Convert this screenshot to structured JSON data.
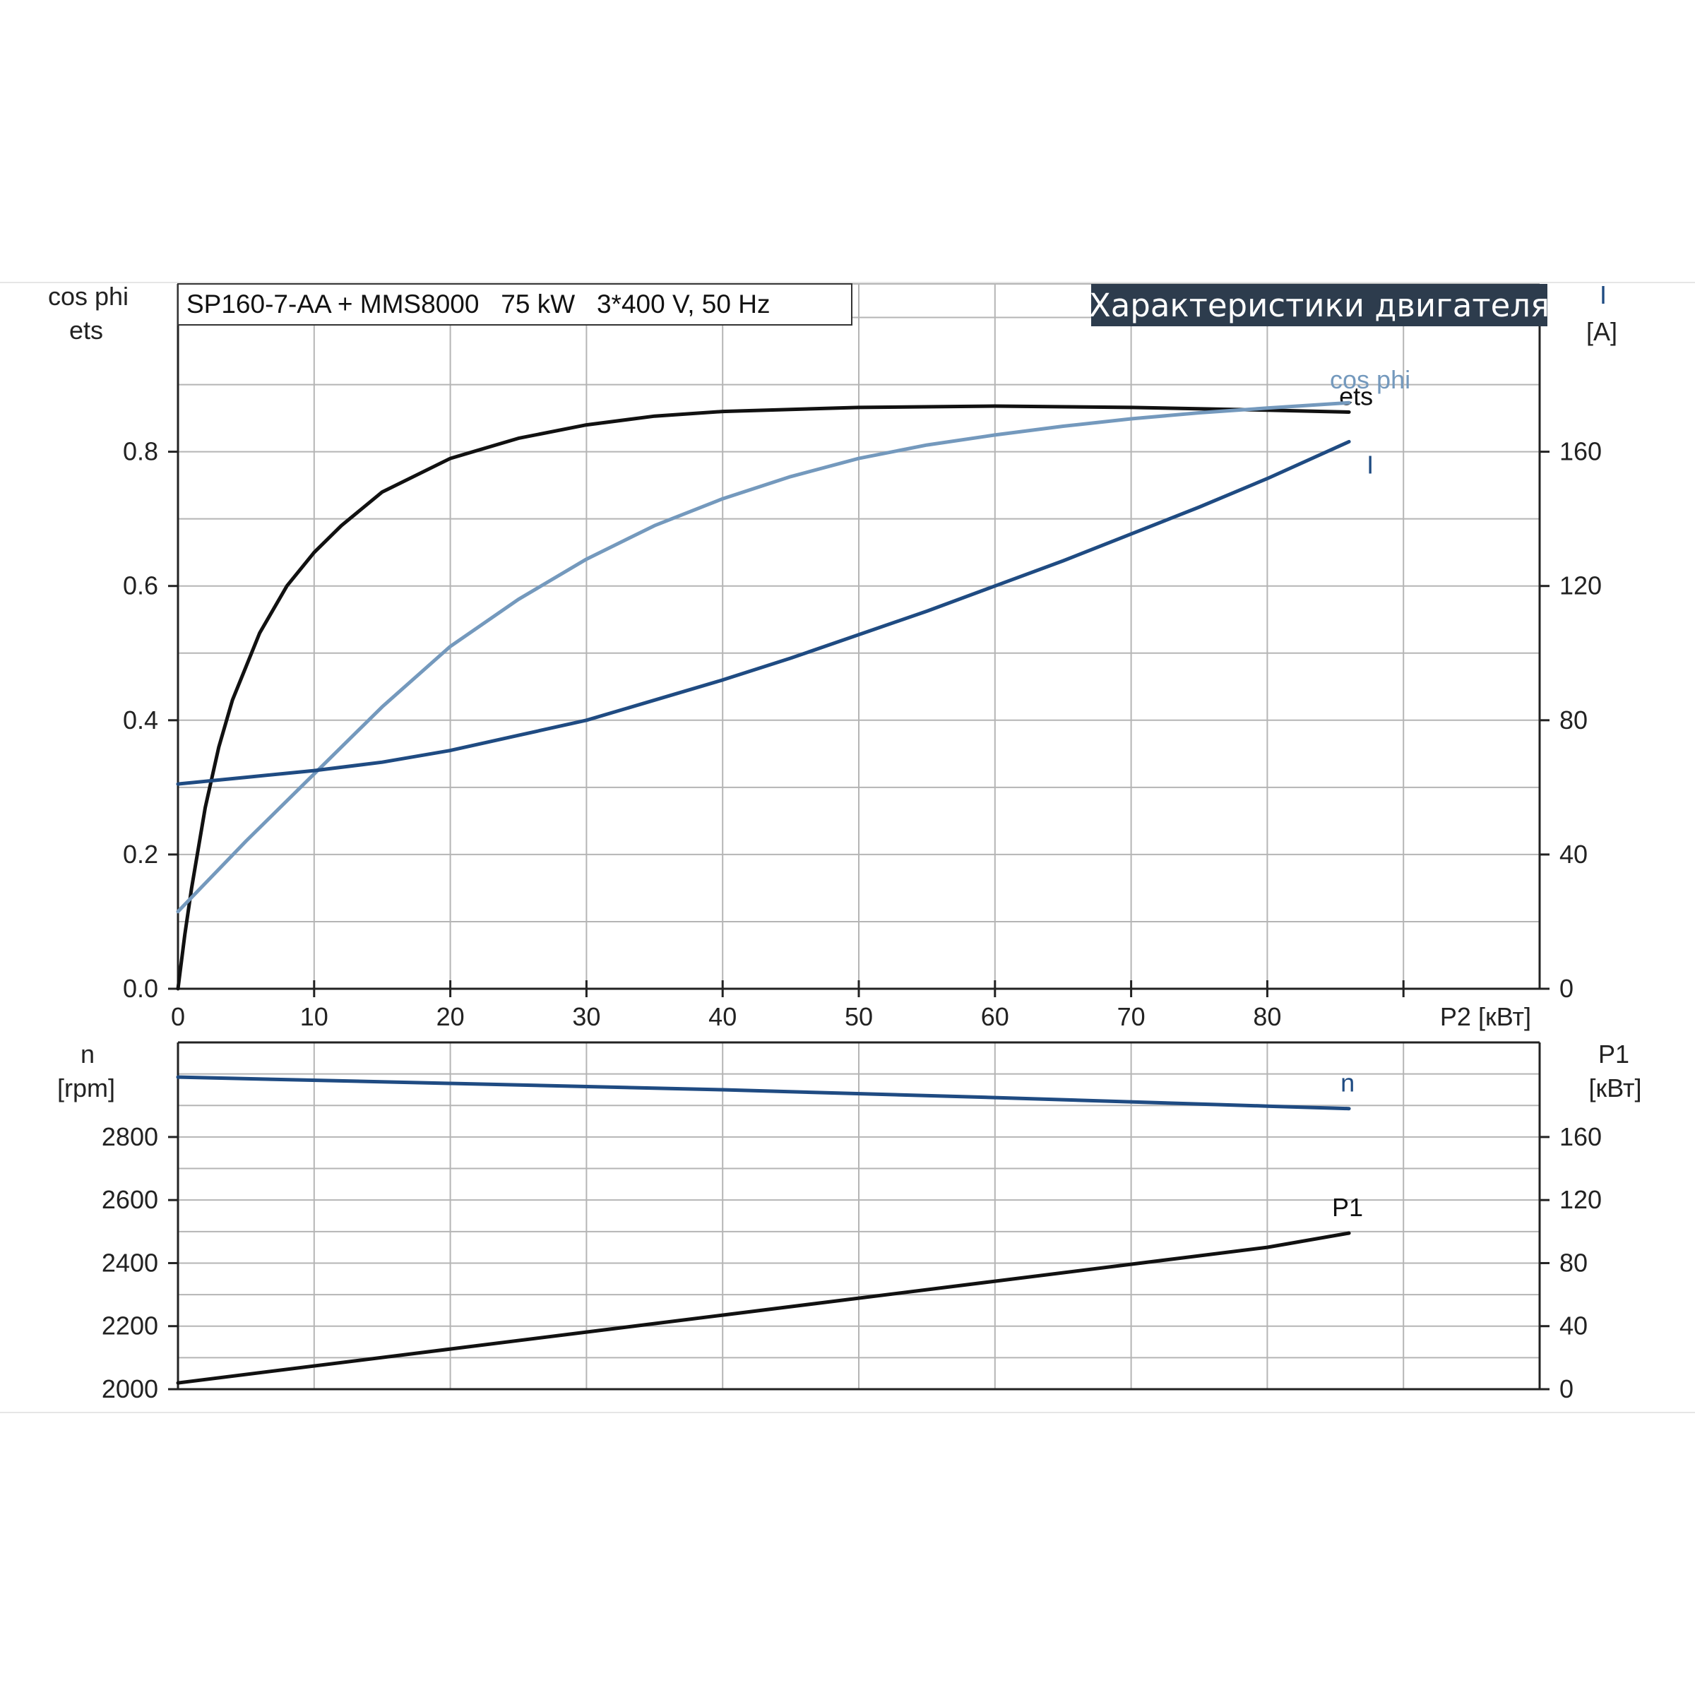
{
  "info_box": "SP160-7-AA + MMS8000   75 kW   3*400 V, 50 Hz",
  "badge": "Характеристики двигателя",
  "colors": {
    "ets": "#111111",
    "cosphi": "#7499bd",
    "I": "#1f4b82",
    "n": "#1f4b82",
    "P1": "#111111",
    "grid": "#b5b5b5",
    "badge_bg": "#2d3c4d"
  },
  "chart_data": [
    {
      "type": "line",
      "name": "upper",
      "xlabel": "P2 [кВт]",
      "xlim": [
        0,
        100
      ],
      "x_ticks": [
        0,
        10,
        20,
        30,
        40,
        50,
        60,
        70,
        80
      ],
      "left_axis": {
        "label_line1": "cos phi",
        "label_line2": "ets",
        "ylim": [
          0,
          1.05
        ],
        "ticks": [
          "0.0",
          "0.2",
          "0.4",
          "0.6",
          "0.8"
        ]
      },
      "right_axis": {
        "label_line1": "I",
        "label_line2": "[A]",
        "ylim": [
          0,
          210
        ],
        "ticks": [
          "0",
          "40",
          "80",
          "120",
          "160"
        ]
      },
      "grid": true,
      "series": [
        {
          "name": "ets",
          "axis": "left",
          "x": [
            0,
            0.5,
            1,
            2,
            3,
            4,
            5,
            6,
            8,
            10,
            12,
            15,
            20,
            25,
            30,
            35,
            40,
            50,
            60,
            70,
            80,
            86
          ],
          "y": [
            0,
            0.08,
            0.15,
            0.27,
            0.36,
            0.43,
            0.48,
            0.53,
            0.6,
            0.65,
            0.69,
            0.74,
            0.79,
            0.82,
            0.84,
            0.853,
            0.86,
            0.866,
            0.868,
            0.866,
            0.862,
            0.859
          ]
        },
        {
          "name": "cos phi",
          "axis": "left",
          "x": [
            0,
            5,
            10,
            15,
            20,
            25,
            30,
            35,
            40,
            45,
            50,
            55,
            60,
            65,
            70,
            75,
            80,
            86
          ],
          "y": [
            0.115,
            0.22,
            0.32,
            0.42,
            0.51,
            0.58,
            0.64,
            0.69,
            0.73,
            0.763,
            0.79,
            0.81,
            0.825,
            0.838,
            0.849,
            0.858,
            0.865,
            0.873
          ]
        },
        {
          "name": "I",
          "axis": "right",
          "x": [
            0,
            5,
            10,
            15,
            20,
            25,
            30,
            35,
            40,
            45,
            50,
            55,
            60,
            65,
            70,
            75,
            80,
            86
          ],
          "y": [
            61,
            63,
            65,
            67.5,
            71,
            75.5,
            80,
            86,
            92,
            98.5,
            105.5,
            112.5,
            120,
            127.5,
            135.5,
            143.5,
            152,
            163
          ]
        }
      ]
    },
    {
      "type": "line",
      "name": "lower",
      "xlim": [
        0,
        100
      ],
      "left_axis": {
        "label_line1": "n",
        "label_line2": "[rpm]",
        "ylim": [
          2000,
          3100
        ],
        "ticks": [
          "2000",
          "2200",
          "2400",
          "2600",
          "2800"
        ]
      },
      "right_axis": {
        "label_line1": "P1",
        "label_line2": "[кВт]",
        "ylim": [
          0,
          220
        ],
        "ticks": [
          "0",
          "40",
          "80",
          "120",
          "160"
        ]
      },
      "grid": true,
      "series": [
        {
          "name": "n",
          "axis": "left",
          "x": [
            0,
            20,
            40,
            60,
            80,
            86
          ],
          "y": [
            2990,
            2970,
            2950,
            2925,
            2898,
            2890
          ]
        },
        {
          "name": "P1",
          "axis": "right",
          "x": [
            0,
            20,
            40,
            60,
            80,
            86
          ],
          "y": [
            4,
            25.5,
            47,
            68.5,
            90,
            99
          ]
        }
      ]
    }
  ]
}
